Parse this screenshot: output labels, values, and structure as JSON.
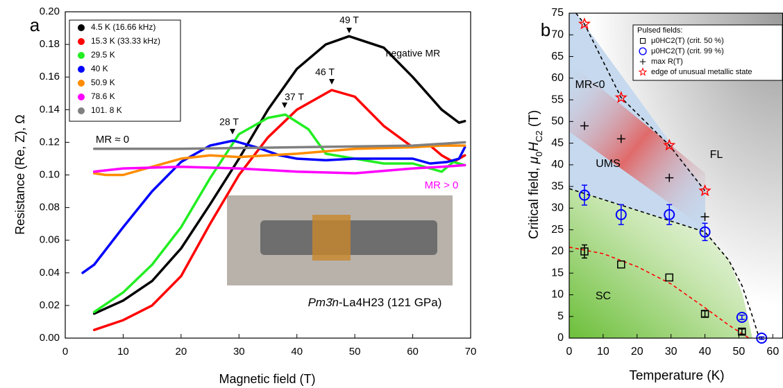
{
  "chart_data": [
    {
      "type": "line",
      "panel_label": "a",
      "xlabel": "Magnetic field (T)",
      "ylabel": "Resistance (Re, Z), Ω",
      "xlim": [
        0,
        70
      ],
      "ylim": [
        0,
        0.2
      ],
      "xticks": [
        0,
        10,
        20,
        30,
        40,
        50,
        60,
        70
      ],
      "yticks": [
        {
          "value": 0,
          "label": "0.00"
        },
        {
          "value": 0.02,
          "label": "0.02"
        },
        {
          "value": 0.04,
          "label": "0.04"
        },
        {
          "value": 0.06,
          "label": "0.06"
        },
        {
          "value": 0.08,
          "label": "0.08"
        },
        {
          "value": 0.1,
          "label": "0.10"
        },
        {
          "value": 0.12,
          "label": "0.12"
        },
        {
          "value": 0.14,
          "label": "0.14"
        },
        {
          "value": 0.16,
          "label": "0.16"
        },
        {
          "value": 0.18,
          "label": "0.18"
        },
        {
          "value": 0.2,
          "label": "0.20"
        }
      ],
      "legend": "upper left",
      "series": [
        {
          "name": "4.5 K (16.66 kHz)",
          "color": "#000000",
          "x": [
            5,
            10,
            15,
            20,
            25,
            30,
            35,
            40,
            45,
            49,
            55,
            60,
            65,
            68,
            69
          ],
          "values": [
            0.015,
            0.023,
            0.035,
            0.055,
            0.082,
            0.11,
            0.14,
            0.165,
            0.18,
            0.185,
            0.178,
            0.16,
            0.14,
            0.132,
            0.133
          ]
        },
        {
          "name": "15.3 K (33.33 kHz)",
          "color": "#ff0000",
          "x": [
            5,
            10,
            15,
            20,
            25,
            30,
            35,
            40,
            46,
            50,
            55,
            60,
            63,
            65,
            67,
            69
          ],
          "values": [
            0.005,
            0.011,
            0.02,
            0.038,
            0.07,
            0.1,
            0.123,
            0.14,
            0.152,
            0.148,
            0.13,
            0.117,
            0.118,
            0.112,
            0.108,
            0.112
          ]
        },
        {
          "name": "29.5 K",
          "color": "#22ee22",
          "x": [
            5,
            10,
            15,
            20,
            25,
            30,
            35,
            38,
            42,
            45,
            50,
            55,
            60,
            65,
            67,
            69
          ],
          "values": [
            0.016,
            0.028,
            0.045,
            0.068,
            0.098,
            0.125,
            0.135,
            0.137,
            0.128,
            0.113,
            0.11,
            0.107,
            0.107,
            0.102,
            0.108,
            0.106
          ]
        },
        {
          "name": "40 K",
          "color": "#0000ff",
          "x": [
            3,
            5,
            10,
            15,
            20,
            25,
            29,
            33,
            37,
            40,
            45,
            50,
            55,
            60,
            63,
            66,
            68,
            69
          ],
          "values": [
            0.04,
            0.045,
            0.068,
            0.09,
            0.108,
            0.118,
            0.121,
            0.117,
            0.112,
            0.11,
            0.109,
            0.11,
            0.11,
            0.11,
            0.107,
            0.108,
            0.11,
            0.117
          ]
        },
        {
          "name": "50.9 K",
          "color": "#ff8c00",
          "x": [
            5,
            7,
            10,
            15,
            20,
            25,
            30,
            40,
            50,
            60,
            65,
            69
          ],
          "values": [
            0.101,
            0.1,
            0.1,
            0.105,
            0.11,
            0.112,
            0.111,
            0.113,
            0.116,
            0.117,
            0.118,
            0.118
          ]
        },
        {
          "name": "78.6 K",
          "color": "#ff00ff",
          "x": [
            5,
            10,
            20,
            30,
            40,
            50,
            60,
            65,
            69
          ],
          "values": [
            0.102,
            0.104,
            0.105,
            0.104,
            0.102,
            0.101,
            0.104,
            0.105,
            0.106
          ]
        },
        {
          "name": "101. 8 K",
          "color": "#808080",
          "x": [
            5,
            20,
            40,
            60,
            69
          ],
          "values": [
            0.116,
            0.116,
            0.117,
            0.118,
            0.12
          ]
        }
      ],
      "annotations": [
        "49 T",
        "46 T",
        "37 T",
        "28 T",
        "negative MR",
        "MR ≈ 0",
        "MR > 0"
      ],
      "inset_caption": [
        "Pm3̄n",
        "-La4H23 (121 GPa)"
      ]
    },
    {
      "type": "scatter",
      "panel_label": "b",
      "xlabel": "Temperature (K)",
      "ylabel": [
        "Critical field, ",
        "μ",
        "0",
        "H",
        "C2",
        " (T)"
      ],
      "xlim": [
        0,
        63
      ],
      "ylim": [
        0,
        75
      ],
      "xticks": [
        0,
        10,
        20,
        30,
        40,
        50,
        60
      ],
      "yticks": [
        0,
        5,
        10,
        15,
        20,
        25,
        30,
        35,
        40,
        45,
        50,
        55,
        60,
        65,
        70,
        75
      ],
      "legend": "upper right",
      "legend_title": "Pulsed fields:",
      "series": [
        {
          "name": "μ0HC2(T) (crit. 50 %)",
          "color": "#000000",
          "marker": "square",
          "x": [
            4.5,
            15.3,
            29.5,
            40,
            50.9
          ],
          "values": [
            20,
            17,
            14,
            5.6,
            1.5
          ],
          "errors": [
            1.5,
            0,
            0,
            0.7,
            0.6
          ]
        },
        {
          "name": "μ0HC2(T) (crit. 99 %)",
          "color": "#0000ff",
          "marker": "circle",
          "x": [
            4.5,
            15.3,
            29.5,
            40,
            50.9,
            56.7
          ],
          "values": [
            33,
            28.5,
            28.5,
            24.5,
            4.8,
            0
          ],
          "errors": [
            2.3,
            2.3,
            2.3,
            2,
            0.5,
            0.3
          ]
        },
        {
          "name": "max R(T)",
          "color": "#000000",
          "marker": "plus",
          "x": [
            4.5,
            15.3,
            29.5,
            40
          ],
          "values": [
            49,
            46,
            37,
            28
          ]
        },
        {
          "name": "edge of unusual metallic state",
          "color": "#ff0000",
          "marker": "star",
          "x": [
            4.5,
            15.3,
            29.5,
            40
          ],
          "values": [
            72.5,
            55.5,
            44.5,
            34
          ]
        }
      ],
      "fits": [
        {
          "color": "#000000",
          "x": [
            2,
            4.5,
            15.3,
            29.5,
            40
          ],
          "values": [
            75,
            72.5,
            55.5,
            44.5,
            34
          ]
        },
        {
          "color": "#000000",
          "x": [
            0,
            20,
            40,
            47,
            51,
            54,
            56
          ],
          "values": [
            34.5,
            29.5,
            24.5,
            18,
            12,
            5,
            0
          ]
        },
        {
          "color": "#ff0000",
          "x": [
            0,
            10,
            20,
            30,
            40,
            47,
            53
          ],
          "values": [
            21,
            19.5,
            16.5,
            12.5,
            7,
            3,
            0
          ]
        }
      ],
      "annotations": [
        "MR<0",
        "UMS",
        "FL",
        "SC"
      ]
    }
  ]
}
